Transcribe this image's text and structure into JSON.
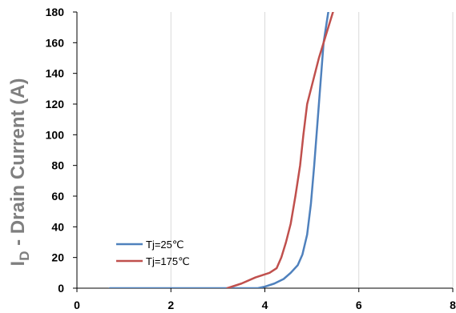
{
  "chart_data": {
    "type": "line",
    "ylabel_main": "I",
    "ylabel_sub": "D",
    "ylabel_rest": " - Drain Current (A)",
    "xlabel": "",
    "title": "",
    "xlim": [
      0,
      8
    ],
    "ylim": [
      0,
      180
    ],
    "x_ticks": [
      "0",
      "2",
      "4",
      "6",
      "8"
    ],
    "y_ticks": [
      "0",
      "20",
      "40",
      "60",
      "80",
      "100",
      "120",
      "140",
      "160",
      "180"
    ],
    "grid": "vertical",
    "legend_position": "bottom-left",
    "series": [
      {
        "name": "Tj=25℃",
        "color": "#4f81bd",
        "points": [
          [
            0.7,
            0
          ],
          [
            3.85,
            0
          ],
          [
            4.0,
            1
          ],
          [
            4.2,
            3
          ],
          [
            4.4,
            6
          ],
          [
            4.55,
            10
          ],
          [
            4.7,
            15
          ],
          [
            4.8,
            22
          ],
          [
            4.9,
            35
          ],
          [
            4.98,
            55
          ],
          [
            5.05,
            80
          ],
          [
            5.1,
            100
          ],
          [
            5.15,
            120
          ],
          [
            5.2,
            140
          ],
          [
            5.25,
            160
          ],
          [
            5.3,
            170
          ],
          [
            5.35,
            180
          ]
        ]
      },
      {
        "name": "Tj=175℃",
        "color": "#c0504d",
        "points": [
          [
            3.2,
            0
          ],
          [
            3.5,
            3
          ],
          [
            3.8,
            7
          ],
          [
            4.1,
            10
          ],
          [
            4.25,
            13
          ],
          [
            4.35,
            20
          ],
          [
            4.45,
            30
          ],
          [
            4.55,
            42
          ],
          [
            4.65,
            60
          ],
          [
            4.75,
            80
          ],
          [
            4.82,
            100
          ],
          [
            4.9,
            120
          ],
          [
            5.0,
            132
          ],
          [
            5.15,
            150
          ],
          [
            5.3,
            165
          ],
          [
            5.45,
            180
          ]
        ]
      }
    ]
  }
}
